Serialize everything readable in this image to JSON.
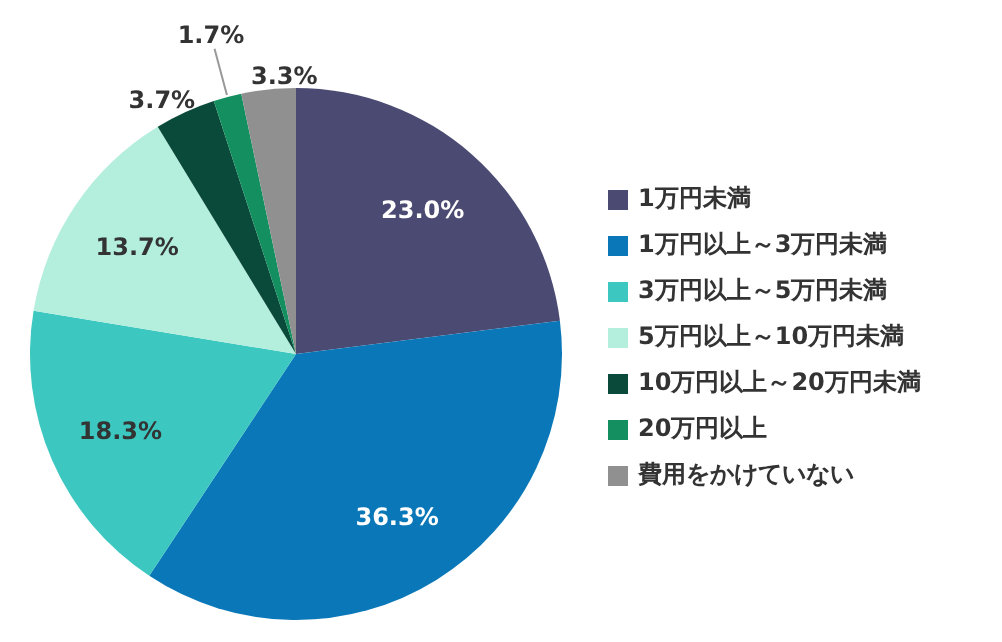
{
  "chart_data": {
    "type": "pie",
    "categories": [
      "1万円未満",
      "1万円以上～3万円未満",
      "3万円以上～5万円未満",
      "5万円以上～10万円未満",
      "10万円以上～20万円未満",
      "20万円以上",
      "費用をかけていない"
    ],
    "values": [
      23.0,
      36.3,
      18.3,
      13.7,
      3.7,
      1.7,
      3.3
    ],
    "colors": [
      "#4a4a72",
      "#0a78b8",
      "#3cc8c0",
      "#b4eedd",
      "#0a4a3a",
      "#149060",
      "#909090"
    ],
    "value_labels": [
      "23.0%",
      "36.3%",
      "18.3%",
      "13.7%",
      "3.7%",
      "1.7%",
      "3.3%"
    ],
    "legend": "right"
  }
}
